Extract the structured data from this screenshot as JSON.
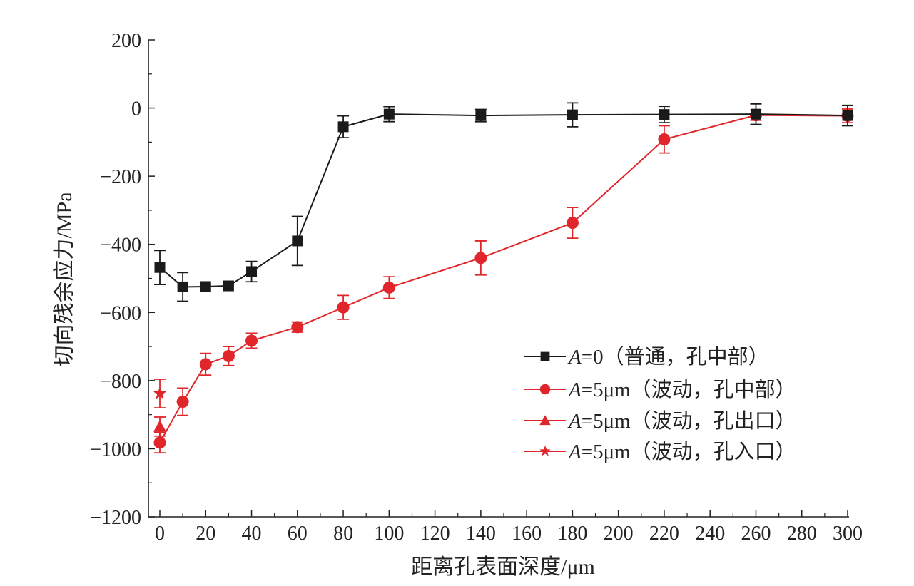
{
  "chart_data": {
    "type": "line",
    "title": "",
    "xlabel": "距离孔表面深度/μm",
    "ylabel": "切向残余应力/MPa",
    "xlim": [
      -5,
      300
    ],
    "ylim": [
      -1200,
      200
    ],
    "xticks": [
      0,
      20,
      40,
      60,
      80,
      100,
      120,
      140,
      160,
      180,
      200,
      220,
      240,
      260,
      280,
      300
    ],
    "yticks": [
      200,
      0,
      -200,
      -400,
      -600,
      -800,
      -1000,
      -1200
    ],
    "ytick_labels": [
      "200",
      "0",
      "−200",
      "−400",
      "−600",
      "−800",
      "−1000",
      "−1200"
    ],
    "grid": false,
    "legend_position": "bottom-right",
    "series": [
      {
        "name_italic": "A",
        "name": "=0（普通，孔中部）",
        "color": "#1a1a1a",
        "marker": "square",
        "x": [
          0,
          10,
          20,
          30,
          40,
          60,
          80,
          100,
          140,
          180,
          220,
          260,
          300
        ],
        "y": [
          -468,
          -525,
          -524,
          -522,
          -480,
          -390,
          -55,
          -18,
          -22,
          -20,
          -19,
          -18,
          -22
        ],
        "err": [
          50,
          42,
          0,
          0,
          30,
          72,
          32,
          22,
          18,
          35,
          24,
          30,
          30
        ]
      },
      {
        "name_italic": "A",
        "name": "=5μm（波动，孔中部）",
        "color": "#e0262b",
        "marker": "circle",
        "x": [
          0,
          10,
          20,
          30,
          40,
          60,
          80,
          100,
          140,
          180,
          220,
          260,
          300
        ],
        "y": [
          -982,
          -862,
          -752,
          -728,
          -683,
          -643,
          -585,
          -527,
          -440,
          -337,
          -92,
          -21,
          -23
        ],
        "err": [
          30,
          40,
          32,
          28,
          22,
          15,
          35,
          32,
          50,
          45,
          40,
          15,
          20
        ]
      },
      {
        "name_italic": "A",
        "name": "=5μm（波动，孔出口）",
        "color": "#e0262b",
        "marker": "triangle",
        "x": [
          0
        ],
        "y": [
          -935
        ],
        "err": [
          28
        ]
      },
      {
        "name_italic": "A",
        "name": "=5μm（波动，孔入口）",
        "color": "#e0262b",
        "marker": "star",
        "x": [
          0
        ],
        "y": [
          -838
        ],
        "err": [
          42
        ]
      }
    ]
  }
}
